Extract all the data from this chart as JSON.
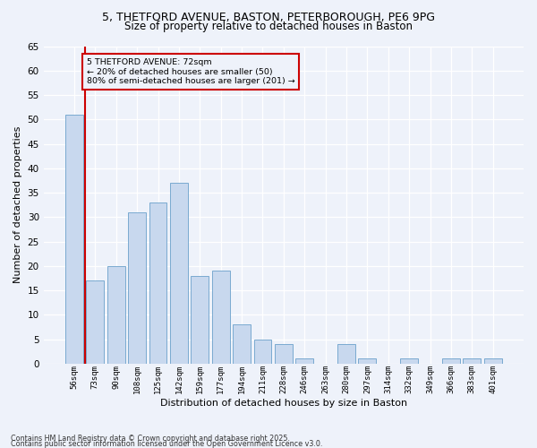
{
  "title_line1": "5, THETFORD AVENUE, BASTON, PETERBOROUGH, PE6 9PG",
  "title_line2": "Size of property relative to detached houses in Baston",
  "xlabel": "Distribution of detached houses by size in Baston",
  "ylabel": "Number of detached properties",
  "categories": [
    "56sqm",
    "73sqm",
    "90sqm",
    "108sqm",
    "125sqm",
    "142sqm",
    "159sqm",
    "177sqm",
    "194sqm",
    "211sqm",
    "228sqm",
    "246sqm",
    "263sqm",
    "280sqm",
    "297sqm",
    "314sqm",
    "332sqm",
    "349sqm",
    "366sqm",
    "383sqm",
    "401sqm"
  ],
  "values": [
    51,
    17,
    20,
    31,
    33,
    37,
    18,
    19,
    8,
    5,
    4,
    1,
    0,
    4,
    1,
    0,
    1,
    0,
    1,
    1,
    1
  ],
  "bar_color": "#c8d8ee",
  "bar_edge_color": "#7aaad0",
  "marker_color": "#cc0000",
  "annotation_box_color": "#cc0000",
  "background_color": "#eef2fa",
  "grid_color": "#ffffff",
  "footnote_line1": "Contains HM Land Registry data © Crown copyright and database right 2025.",
  "footnote_line2": "Contains public sector information licensed under the Open Government Licence v3.0.",
  "ylim": [
    0,
    65
  ],
  "yticks": [
    0,
    5,
    10,
    15,
    20,
    25,
    30,
    35,
    40,
    45,
    50,
    55,
    60,
    65
  ]
}
